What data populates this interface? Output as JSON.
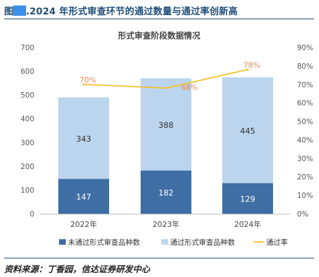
{
  "figure": {
    "prefix": "图",
    "rest": ".2024 年形式审查环节的通过数量与通过率创新高",
    "source": "资料来源：丁香园，信达证券研发中心"
  },
  "chart_data": {
    "type": "bar",
    "stacked": true,
    "title": "形式审查阶段数据情况",
    "categories": [
      "2022年",
      "2023年",
      "2024年"
    ],
    "series": [
      {
        "name": "未通过形式审查品种数",
        "values": [
          147,
          182,
          129
        ],
        "color": "#3f6ea5"
      },
      {
        "name": "通过形式审查品种数",
        "values": [
          343,
          388,
          445
        ],
        "color": "#bcd5ee"
      }
    ],
    "line_series": {
      "name": "通过率",
      "values": [
        70,
        68,
        78
      ],
      "labels": [
        "70%",
        "68%",
        "78%"
      ],
      "color": "#f5c02a",
      "label_color": "#ed8a4a"
    },
    "ylim": [
      0,
      700
    ],
    "yticks": [
      "0",
      "100",
      "200",
      "300",
      "400",
      "500",
      "600",
      "700"
    ],
    "y2lim": [
      0,
      90
    ],
    "y2ticks": [
      "0%",
      "10%",
      "20%",
      "30%",
      "40%",
      "50%",
      "60%",
      "70%",
      "80%",
      "90%"
    ],
    "legend_position": "bottom"
  }
}
